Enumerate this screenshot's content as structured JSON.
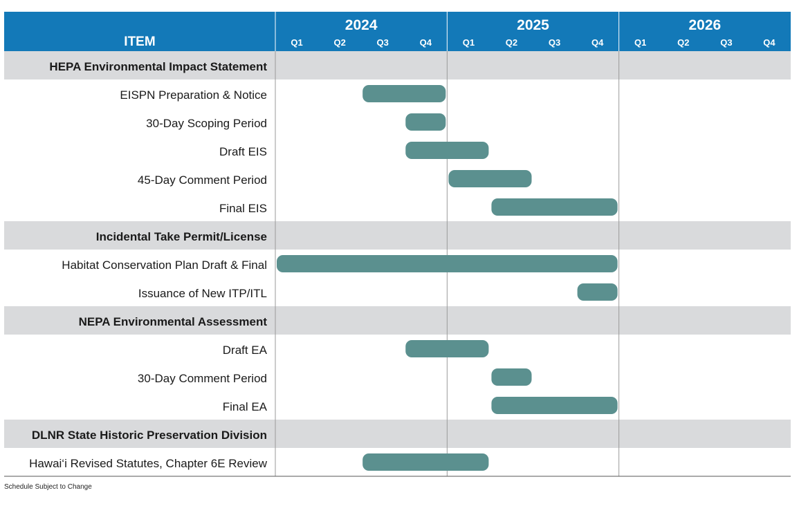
{
  "chart_data": {
    "type": "gantt",
    "header": {
      "item_label": "ITEM"
    },
    "years": [
      "2024",
      "2025",
      "2026"
    ],
    "quarters": [
      "Q1",
      "Q2",
      "Q3",
      "Q4"
    ],
    "colors": {
      "header": "#1379B8",
      "section": "#D9DADC",
      "bar": "#5B908F",
      "grid": "#9A9A9A",
      "text": "#1A1A1A"
    },
    "rows": [
      {
        "kind": "section",
        "label": "HEPA Environmental Impact Statement"
      },
      {
        "kind": "task",
        "label": "EISPN Preparation & Notice",
        "start": "2024-Q3",
        "end": "2024-Q4"
      },
      {
        "kind": "task",
        "label": "30-Day Scoping Period",
        "start": "2024-Q4",
        "end": "2024-Q4"
      },
      {
        "kind": "task",
        "label": "Draft EIS",
        "start": "2024-Q4",
        "end": "2025-Q1"
      },
      {
        "kind": "task",
        "label": "45-Day Comment Period",
        "start": "2025-Q1",
        "end": "2025-Q2"
      },
      {
        "kind": "task",
        "label": "Final EIS",
        "start": "2025-Q2",
        "end": "2025-Q4"
      },
      {
        "kind": "section",
        "label": "Incidental Take Permit/License"
      },
      {
        "kind": "task",
        "label": "Habitat Conservation Plan Draft & Final",
        "start": "2024-Q1",
        "end": "2025-Q4"
      },
      {
        "kind": "task",
        "label": "Issuance of New ITP/ITL",
        "start": "2025-Q4",
        "end": "2025-Q4"
      },
      {
        "kind": "section",
        "label": "NEPA Environmental Assessment"
      },
      {
        "kind": "task",
        "label": "Draft EA",
        "start": "2024-Q4",
        "end": "2025-Q1"
      },
      {
        "kind": "task",
        "label": "30-Day Comment Period",
        "start": "2025-Q2",
        "end": "2025-Q2"
      },
      {
        "kind": "task",
        "label": "Final EA",
        "start": "2025-Q2",
        "end": "2025-Q4"
      },
      {
        "kind": "section",
        "label": "DLNR State Historic Preservation Division"
      },
      {
        "kind": "task",
        "label": "Hawai‘i Revised Statutes, Chapter 6E Review",
        "start": "2024-Q3",
        "end": "2025-Q1"
      }
    ]
  },
  "footnote": "Schedule Subject to Change"
}
